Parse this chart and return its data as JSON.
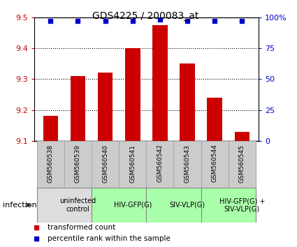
{
  "title": "GDS4225 / 200083_at",
  "samples": [
    "GSM560538",
    "GSM560539",
    "GSM560540",
    "GSM560541",
    "GSM560542",
    "GSM560543",
    "GSM560544",
    "GSM560545"
  ],
  "bar_values": [
    9.18,
    9.31,
    9.32,
    9.4,
    9.475,
    9.35,
    9.24,
    9.13
  ],
  "percentile_values": [
    97,
    97,
    97,
    97,
    98,
    97,
    97,
    97
  ],
  "ylim_left": [
    9.1,
    9.5
  ],
  "ylim_right": [
    0,
    100
  ],
  "yticks_left": [
    9.1,
    9.2,
    9.3,
    9.4,
    9.5
  ],
  "yticks_right": [
    0,
    25,
    50,
    75,
    100
  ],
  "bar_color": "#cc0000",
  "dot_color": "#0000cc",
  "bar_width": 0.55,
  "groups": [
    {
      "label": "uninfected\ncontrol",
      "start": 0,
      "end": 2,
      "color": "#dddddd"
    },
    {
      "label": "HIV-GFP(G)",
      "start": 2,
      "end": 4,
      "color": "#aaffaa"
    },
    {
      "label": "SIV-VLP(G)",
      "start": 4,
      "end": 6,
      "color": "#aaffaa"
    },
    {
      "label": "HIV-GFP(G) +\nSIV-VLP(G)",
      "start": 6,
      "end": 8,
      "color": "#aaffaa"
    }
  ],
  "infection_label": "infection",
  "legend_items": [
    {
      "color": "#cc0000",
      "label": "transformed count"
    },
    {
      "color": "#0000cc",
      "label": "percentile rank within the sample"
    }
  ],
  "tick_label_color_left": "#cc0000",
  "tick_label_color_right": "#0000cc",
  "sample_box_color": "#cccccc",
  "sample_box_edge": "#aaaaaa"
}
